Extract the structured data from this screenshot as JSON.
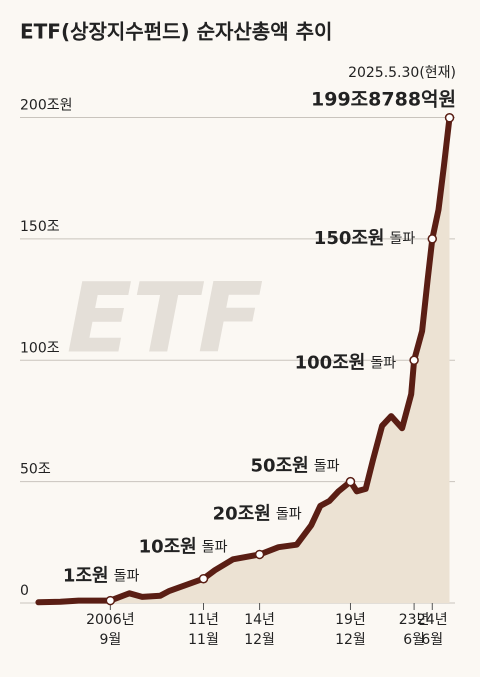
{
  "chart_data": {
    "type": "line",
    "title": "ETF(상장지수펀드) 순자산총액 추이",
    "watermark": "ETF",
    "x": [
      2002.79,
      2004,
      2005,
      2006.75,
      2007.8,
      2008.5,
      2009.5,
      2010,
      2011.875,
      2012.5,
      2013.5,
      2014.96,
      2016,
      2017,
      2017.8,
      2018.3,
      2018.8,
      2019.3,
      2019.96,
      2020.3,
      2020.8,
      2021.2,
      2021.7,
      2022.2,
      2022.8,
      2023.3,
      2023.46,
      2023.9,
      2024.2,
      2024.46,
      2024.8,
      2025.1,
      2025.41
    ],
    "series": [
      {
        "name": "순자산총액",
        "color": "#5a1e14",
        "values": [
          0.3,
          0.5,
          1,
          1,
          4,
          2.5,
          3,
          5,
          10,
          13.5,
          18,
          20,
          23,
          24,
          32,
          40,
          42,
          46,
          50,
          46,
          47,
          59,
          73,
          77,
          72,
          86,
          100,
          112,
          133,
          150,
          162,
          180,
          199.8788
        ]
      }
    ],
    "area_color": "#ece2d3",
    "xlim": [
      2002,
      2025.6
    ],
    "xticks": [
      {
        "value": 2006.75,
        "label": "2006년\n9월"
      },
      {
        "value": 2011.875,
        "label": "11년\n11월"
      },
      {
        "value": 2014.96,
        "label": "14년\n12월"
      },
      {
        "value": 2019.96,
        "label": "19년\n12월"
      },
      {
        "value": 2023.46,
        "label": "23년\n6월"
      },
      {
        "value": 2024.46,
        "label": "24년\n6월"
      }
    ],
    "ylim": [
      0,
      200
    ],
    "yticks": [
      0,
      {
        "value": 50,
        "label": "50조"
      },
      {
        "value": 100,
        "label": "100조"
      },
      {
        "value": 150,
        "label": "150조"
      },
      {
        "value": 200,
        "label": "200조원"
      }
    ],
    "grid": true,
    "annotations": [
      {
        "label": "1조원",
        "note": "돌파",
        "x": 2006.75,
        "y": 1
      },
      {
        "label": "10조원",
        "note": "돌파",
        "x": 2011.875,
        "y": 10
      },
      {
        "label": "20조원",
        "note": "돌파",
        "x": 2014.96,
        "y": 20
      },
      {
        "label": "50조원",
        "note": "돌파",
        "x": 2019.96,
        "y": 50
      },
      {
        "label": "100조원",
        "note": "돌파",
        "x": 2023.46,
        "y": 100
      },
      {
        "label": "150조원",
        "note": "돌파",
        "x": 2024.46,
        "y": 150
      }
    ],
    "latest": {
      "date": "2025.5.30(현재)",
      "label": "199조8788억원",
      "x": 2025.41,
      "y": 199.8788
    }
  }
}
